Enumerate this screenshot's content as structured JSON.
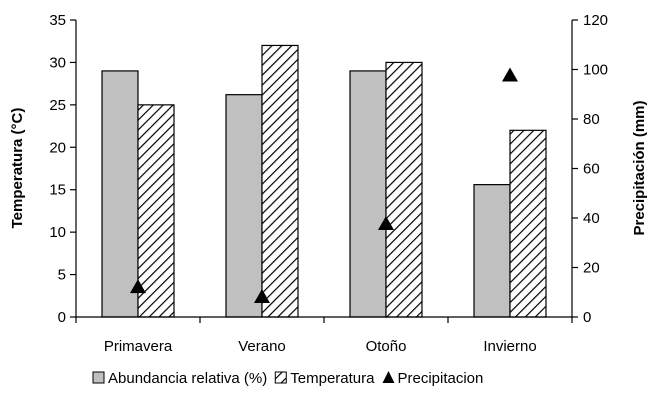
{
  "chart_data": {
    "type": "bar",
    "categories": [
      "Primavera",
      "Verano",
      "Otoño",
      "Invierno"
    ],
    "series": [
      {
        "name": "Abundancia relativa (%)",
        "kind": "bar",
        "axis": "left",
        "style": "solid-gray",
        "values": [
          29,
          26.2,
          29,
          15.6
        ]
      },
      {
        "name": "Temperatura",
        "kind": "bar",
        "axis": "left",
        "style": "hatched",
        "values": [
          25,
          32,
          30,
          22
        ]
      },
      {
        "name": "Precipitacion",
        "kind": "marker",
        "marker": "triangle",
        "axis": "right",
        "values": [
          12.5,
          8.5,
          38,
          98
        ]
      }
    ],
    "y_left": {
      "label": "Temperatura (°C)",
      "range": [
        0,
        35
      ],
      "ticks": [
        "0",
        "5",
        "10",
        "15",
        "20",
        "25",
        "30",
        "35"
      ]
    },
    "y_right": {
      "label": "Precipitación (mm)",
      "range": [
        0,
        120
      ],
      "ticks": [
        "0",
        "20",
        "40",
        "60",
        "80",
        "100",
        "120"
      ]
    },
    "grid": false,
    "legend_position": "bottom",
    "colors": {
      "bar_fill": "#c0c0c0",
      "hatch": "#000000",
      "marker": "#000000",
      "axis": "#000000"
    }
  }
}
